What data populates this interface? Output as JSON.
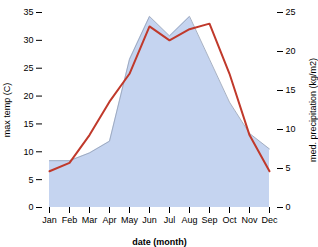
{
  "chart_data": {
    "type": "line",
    "categories": [
      "Jan",
      "Feb",
      "Mar",
      "Apr",
      "May",
      "Jun",
      "Jul",
      "Aug",
      "Sep",
      "Oct",
      "Nov",
      "Dec"
    ],
    "xlabel": "date (month)",
    "ylabel": "max temp (C)",
    "y2label": "med. precipitation (kg/m2)",
    "series": [
      {
        "type": "area",
        "axis": "y2",
        "color": "#c5d4f0",
        "values": [
          6.0,
          6.0,
          7.0,
          8.5,
          19.0,
          24.5,
          22.0,
          24.5,
          19.0,
          13.5,
          9.5,
          7.5
        ]
      },
      {
        "type": "line",
        "color": "#c0392b",
        "values": [
          6.5,
          8.0,
          13.0,
          19.0,
          24.0,
          32.5,
          30.0,
          32.0,
          33.0,
          24.0,
          13.0,
          6.5
        ]
      }
    ],
    "ylim": [
      0,
      35
    ],
    "yticks": [
      0,
      5,
      10,
      15,
      20,
      25,
      30,
      35
    ],
    "y2lim": [
      0,
      25
    ],
    "y2ticks": [
      0,
      5,
      10,
      15,
      20,
      25
    ],
    "grid": false
  }
}
